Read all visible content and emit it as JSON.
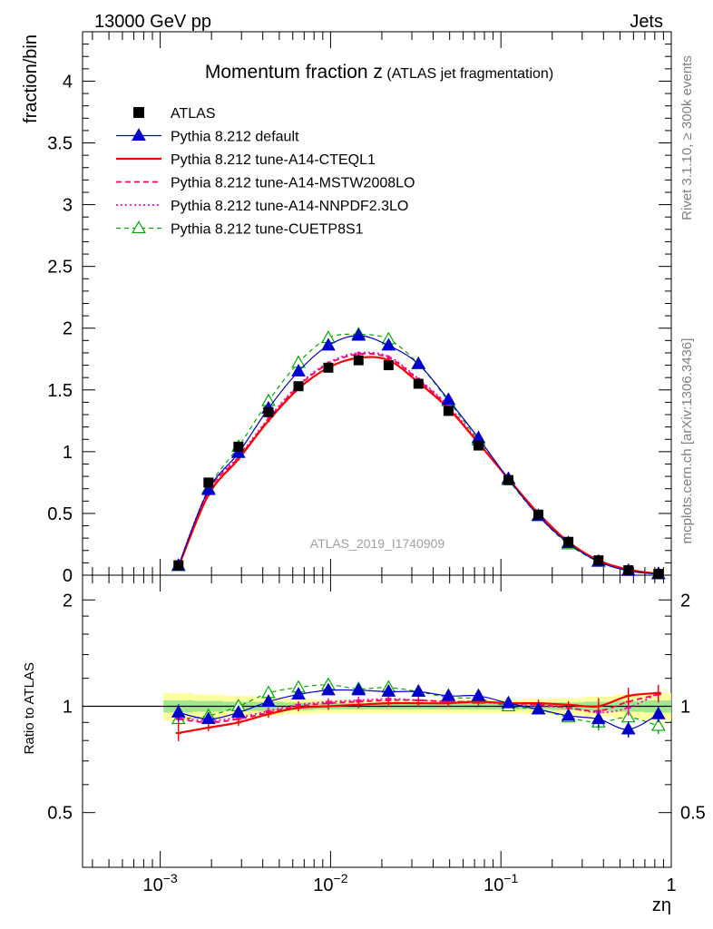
{
  "header": {
    "left": "13000 GeV pp",
    "right": "Jets"
  },
  "side": {
    "rivet": "Rivet 3.1.10, ≥ 300k events",
    "mcplots": "mcplots.cern.ch [arXiv:1306.3436]"
  },
  "title": {
    "main": "Momentum fraction z",
    "sub": "(ATLAS jet fragmentation)"
  },
  "watermark": "ATLAS_2019_I1740909",
  "chart_data": [
    {
      "type": "line",
      "ylabel": "fraction/bin",
      "xlabel": "zη",
      "xscale": "log",
      "xlim": [
        0.00035,
        1.0
      ],
      "ylim": [
        0,
        4.4
      ],
      "yticks": [
        {
          "v": 0,
          "label": "0"
        },
        {
          "v": 0.5,
          "label": "0.5"
        },
        {
          "v": 1,
          "label": "1"
        },
        {
          "v": 1.5,
          "label": "1.5"
        },
        {
          "v": 2,
          "label": "2"
        },
        {
          "v": 2.5,
          "label": "2.5"
        },
        {
          "v": 3,
          "label": "3"
        },
        {
          "v": 3.5,
          "label": "3.5"
        },
        {
          "v": 4,
          "label": "4"
        }
      ],
      "x": [
        0.00128,
        0.00192,
        0.00288,
        0.00432,
        0.00648,
        0.0097,
        0.0146,
        0.0219,
        0.0328,
        0.0492,
        0.0738,
        0.1107,
        0.166,
        0.249,
        0.374,
        0.56,
        0.84
      ],
      "series": [
        {
          "name": "ATLAS",
          "color": "#000000",
          "style": "data",
          "values": [
            0.08,
            0.75,
            1.04,
            1.32,
            1.53,
            1.68,
            1.74,
            1.7,
            1.55,
            1.33,
            1.05,
            0.77,
            0.49,
            0.27,
            0.12,
            0.04,
            0.01
          ]
        },
        {
          "name": "Pythia 8.212 default",
          "color": "#0000cc",
          "style": "solid-tri",
          "values": [
            0.077,
            0.69,
            0.99,
            1.35,
            1.65,
            1.86,
            1.94,
            1.86,
            1.71,
            1.42,
            1.11,
            0.78,
            0.48,
            0.26,
            0.11,
            0.035,
            0.009
          ]
        },
        {
          "name": "Pythia 8.212 tune-A14-CTEQL1",
          "color": "#ff0000",
          "style": "solid-bold",
          "values": [
            0.067,
            0.65,
            0.94,
            1.25,
            1.51,
            1.68,
            1.76,
            1.74,
            1.56,
            1.35,
            1.07,
            0.78,
            0.5,
            0.27,
            0.12,
            0.045,
            0.011
          ]
        },
        {
          "name": "Pythia 8.212 tune-A14-MSTW2008LO",
          "color": "#ff0066",
          "style": "dashed",
          "values": [
            0.073,
            0.68,
            0.95,
            1.26,
            1.53,
            1.71,
            1.79,
            1.76,
            1.58,
            1.36,
            1.07,
            0.78,
            0.5,
            0.27,
            0.12,
            0.043,
            0.011
          ]
        },
        {
          "name": "Pythia 8.212 tune-A14-NNPDF2.3LO",
          "color": "#ff00cc",
          "style": "dotted",
          "values": [
            0.074,
            0.69,
            0.96,
            1.27,
            1.54,
            1.72,
            1.8,
            1.77,
            1.59,
            1.37,
            1.08,
            0.78,
            0.49,
            0.27,
            0.12,
            0.042,
            0.011
          ]
        },
        {
          "name": "Pythia 8.212 tune-CUETP8S1",
          "color": "#00aa00",
          "style": "dashed-open-tri",
          "values": [
            0.074,
            0.7,
            1.04,
            1.41,
            1.72,
            1.92,
            1.95,
            1.91,
            1.71,
            1.41,
            1.09,
            0.77,
            0.48,
            0.25,
            0.11,
            0.037,
            0.009
          ]
        }
      ]
    },
    {
      "type": "line",
      "ylabel": "Ratio to ATLAS",
      "xlabel": "zη",
      "xscale": "log",
      "xlim": [
        0.00035,
        1.0
      ],
      "ylim": [
        0.35,
        2.35
      ],
      "yticks": [
        {
          "v": 0.5,
          "label": "0.5"
        },
        {
          "v": 1,
          "label": "1"
        },
        {
          "v": 2,
          "label": "2"
        }
      ],
      "xticks": [
        {
          "v": 0.001,
          "base": "10",
          "exp": "−3"
        },
        {
          "v": 0.01,
          "base": "10",
          "exp": "−2"
        },
        {
          "v": 0.1,
          "base": "10",
          "exp": "−1"
        },
        {
          "v": 1,
          "base": "1",
          "exp": ""
        }
      ],
      "band": {
        "stat_half": [
          0.04,
          0.035,
          0.03,
          0.03,
          0.025,
          0.02,
          0.02,
          0.02,
          0.02,
          0.02,
          0.02,
          0.02,
          0.02,
          0.025,
          0.03,
          0.035,
          0.04
        ],
        "total_half": [
          0.09,
          0.08,
          0.07,
          0.06,
          0.05,
          0.045,
          0.045,
          0.045,
          0.045,
          0.045,
          0.045,
          0.045,
          0.05,
          0.055,
          0.065,
          0.08,
          0.09
        ]
      },
      "series": [
        {
          "name": "Pythia 8.212 default",
          "values": [
            0.96,
            0.92,
            0.96,
            1.03,
            1.08,
            1.11,
            1.11,
            1.1,
            1.1,
            1.07,
            1.07,
            1.02,
            0.98,
            0.94,
            0.92,
            0.86,
            0.95
          ]
        },
        {
          "name": "Pythia 8.212 tune-A14-CTEQL1",
          "values": [
            0.84,
            0.87,
            0.9,
            0.95,
            0.99,
            1.0,
            1.01,
            1.02,
            1.02,
            1.02,
            1.03,
            1.02,
            1.02,
            1.01,
            1.0,
            1.07,
            1.09
          ]
        },
        {
          "name": "Pythia 8.212 tune-A14-MSTW2008LO",
          "values": [
            0.92,
            0.9,
            0.92,
            0.96,
            1.0,
            1.02,
            1.03,
            1.04,
            1.04,
            1.03,
            1.03,
            1.02,
            1.01,
            0.99,
            0.97,
            1.03,
            1.08
          ]
        },
        {
          "name": "Pythia 8.212 tune-A14-NNPDF2.3LO",
          "values": [
            0.93,
            0.91,
            0.93,
            0.97,
            1.01,
            1.03,
            1.04,
            1.05,
            1.04,
            1.03,
            1.03,
            1.01,
            1.0,
            0.99,
            0.96,
            0.99,
            1.09
          ]
        },
        {
          "name": "Pythia 8.212 tune-CUETP8S1",
          "values": [
            0.92,
            0.94,
            1.0,
            1.09,
            1.13,
            1.15,
            1.12,
            1.13,
            1.1,
            1.06,
            1.05,
            1.0,
            0.98,
            0.93,
            0.9,
            0.93,
            0.88
          ]
        }
      ]
    }
  ]
}
